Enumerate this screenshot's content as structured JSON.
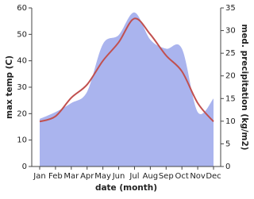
{
  "chart_data": {
    "type": "line",
    "categories": [
      "Jan",
      "Feb",
      "Mar",
      "Apr",
      "May",
      "Jun",
      "Jul",
      "Aug",
      "Sep",
      "Oct",
      "Nov",
      "Dec"
    ],
    "xlabel": "date (month)",
    "ylabel": "max temp (C)",
    "y2label": "med. precipitation (kg/m2)",
    "ylim": [
      0,
      60
    ],
    "yticks": [
      0,
      10,
      20,
      30,
      40,
      50,
      60
    ],
    "y2lim": [
      0,
      35
    ],
    "y2ticks": [
      0,
      5,
      10,
      15,
      20,
      25,
      30,
      35
    ],
    "series": [
      {
        "type": "area",
        "axis": "y2",
        "color": "#aab4ee",
        "values": [
          10.5,
          12,
          14,
          16.5,
          27,
          29,
          34,
          28,
          26,
          26,
          12,
          15
        ]
      },
      {
        "type": "line",
        "axis": "y",
        "color": "#c1504f",
        "values": [
          17,
          19,
          26,
          31,
          40,
          47,
          56,
          50,
          42,
          36,
          24,
          17
        ]
      }
    ]
  }
}
